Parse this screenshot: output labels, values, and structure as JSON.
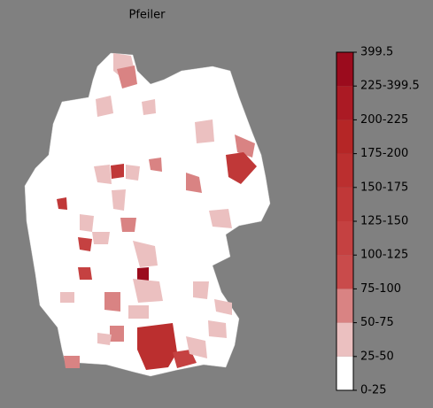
{
  "title": "Pfeiler",
  "colorbar": {
    "ticks": [
      "0-25",
      "25-50",
      "50-75",
      "75-100",
      "100-125",
      "125-150",
      "150-175",
      "175-200",
      "200-225",
      "225-399.5",
      "399.5"
    ],
    "colors": [
      "#ffffff",
      "#ebc0c0",
      "#d98383",
      "#c94b4b",
      "#c54141",
      "#c03838",
      "#bb2f2f",
      "#b52626",
      "#ab1a24",
      "#9b0b1d"
    ]
  }
}
